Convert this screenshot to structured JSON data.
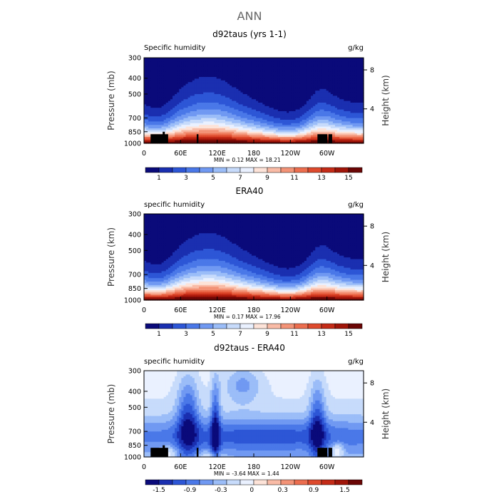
{
  "figure": {
    "main_title": "ANN"
  },
  "chart_data": [
    {
      "type": "heatmap",
      "title": "d92taus (yrs 1-1)",
      "left_label": "Specific humidity",
      "units": "g/kg",
      "ylabel": "Pressure (mb)",
      "y2label": "Height (km)",
      "pressure_ticks": [
        "300",
        "400",
        "500",
        "700",
        "850",
        "1000"
      ],
      "height_ticks": [
        "8",
        "4"
      ],
      "lon_ticks": [
        "0",
        "60E",
        "120E",
        "180",
        "120W",
        "60W"
      ],
      "stats": "MIN =   0.12  MAX =  18.21",
      "colorbar_labels": [
        "1",
        "3",
        "5",
        "7",
        "9",
        "11",
        "13",
        "15"
      ],
      "colors": [
        "#0a0a7a",
        "#1a2fb0",
        "#2d56d6",
        "#4a78e8",
        "#7099f2",
        "#9bbdf8",
        "#c7dbfb",
        "#eaf1ff",
        "#fde3d8",
        "#f9bba6",
        "#f39377",
        "#ec6e4f",
        "#de4a2d",
        "#c42b17",
        "#a01509",
        "#6b0605"
      ],
      "range": [
        0,
        16
      ],
      "shape": "humidity",
      "land_mask": true
    },
    {
      "type": "heatmap",
      "title": "ERA40",
      "left_label": "specific humidity",
      "units": "g/kg",
      "ylabel": "Pressure (km)",
      "y2label": "Height (km)",
      "pressure_ticks": [
        "300",
        "400",
        "500",
        "700",
        "850",
        "1000"
      ],
      "height_ticks": [
        "8",
        "4"
      ],
      "lon_ticks": [
        "0",
        "60E",
        "120E",
        "180",
        "120W",
        "60W"
      ],
      "stats": "MIN =   0.17  MAX =  17.96",
      "colorbar_labels": [
        "1",
        "3",
        "5",
        "7",
        "9",
        "11",
        "13",
        "15"
      ],
      "colors": [
        "#0a0a7a",
        "#1a2fb0",
        "#2d56d6",
        "#4a78e8",
        "#7099f2",
        "#9bbdf8",
        "#c7dbfb",
        "#eaf1ff",
        "#fde3d8",
        "#f9bba6",
        "#f39377",
        "#ec6e4f",
        "#de4a2d",
        "#c42b17",
        "#a01509",
        "#6b0605"
      ],
      "range": [
        0,
        16
      ],
      "shape": "humidity",
      "land_mask": false
    },
    {
      "type": "heatmap",
      "title": "d92taus - ERA40",
      "left_label": "specific humidity",
      "units": "g/kg",
      "ylabel": "Pressure (mb)",
      "y2label": "Height (km)",
      "pressure_ticks": [
        "300",
        "400",
        "500",
        "700",
        "850",
        "1000"
      ],
      "height_ticks": [
        "8",
        "4"
      ],
      "lon_ticks": [
        "0",
        "60E",
        "120E",
        "180",
        "120W",
        "60W"
      ],
      "stats": "MIN =  -3.64  MAX =   1.44",
      "colorbar_labels": [
        "-1.5",
        "-0.9",
        "-0.3",
        "0",
        "0.3",
        "0.9",
        "1.5"
      ],
      "colors": [
        "#0a0a7a",
        "#1a2fb0",
        "#2d56d6",
        "#4a78e8",
        "#7099f2",
        "#9bbdf8",
        "#c7dbfb",
        "#eaf1ff",
        "#fde3d8",
        "#f9bba6",
        "#f39377",
        "#ec6e4f",
        "#de4a2d",
        "#c42b17",
        "#a01509",
        "#6b0605"
      ],
      "range": [
        -1.8,
        1.8
      ],
      "shape": "difference",
      "land_mask": true
    }
  ]
}
